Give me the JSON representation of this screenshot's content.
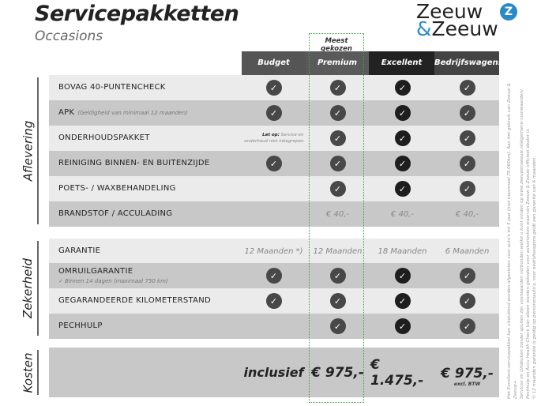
{
  "title": "Servicepakketten",
  "subtitle": "Occasions",
  "logo": {
    "line1": "Zeeuw",
    "line2_amp": "&",
    "line2": "Zeeuw",
    "mark": "Z"
  },
  "badge": "Meest gekozen",
  "columns": [
    "Budget",
    "Premium",
    "Excellent",
    "Bedrijfswagens"
  ],
  "colors": {
    "highlight": "#3aa53a",
    "logo_blue": "#2a8ac8"
  },
  "sections": [
    {
      "label": "Aflevering",
      "rows": [
        {
          "label": "BOVAG 40-PUNTENCHECK",
          "cells": [
            "check",
            "check",
            "check",
            "check"
          ]
        },
        {
          "label": "APK",
          "note": "(Geldigheid van minimaal 12 maanden)",
          "cells": [
            "check",
            "check",
            "check",
            "check"
          ]
        },
        {
          "label": "ONDERHOUDSPAKKET",
          "cells": [
            "letop",
            "check",
            "check",
            "check"
          ]
        },
        {
          "label": "REINIGING BINNEN- EN BUITENZIJDE",
          "cells": [
            "check",
            "check",
            "check",
            "check"
          ]
        },
        {
          "label": "POETS- / WAXBEHANDELING",
          "cells": [
            "",
            "check",
            "check",
            "check"
          ]
        },
        {
          "label": "BRANDSTOF / ACCULADING",
          "cells": [
            "",
            "€ 40,-",
            "€ 40,-",
            "€ 40,-"
          ]
        }
      ]
    },
    {
      "label": "Zekerheid",
      "rows": [
        {
          "label": "GARANTIE",
          "cells": [
            "12 Maanden *)",
            "12 Maanden",
            "18 Maanden",
            "6 Maanden"
          ]
        },
        {
          "label": "OMRUILGARANTIE",
          "sub": "✓   Binnen 14 dagen (maximaal 750 km)",
          "cells": [
            "check",
            "check",
            "check",
            "check"
          ]
        },
        {
          "label": "GEGARANDEERDE KILOMETERSTAND",
          "cells": [
            "check",
            "check",
            "check",
            "check"
          ]
        },
        {
          "label": "PECHHULP",
          "cells": [
            "",
            "check",
            "check",
            "check"
          ]
        }
      ]
    },
    {
      "label": "Kosten",
      "prices": [
        "inclusief",
        "€ 975,-",
        "€ 1.475,-",
        "€ 975,-"
      ],
      "excl": "excl. BTW"
    }
  ],
  "letop": {
    "bold": "Let op:",
    "text": "Service en onderhoud niet inbegrepen"
  },
  "footnote": [
    "Het Excellent-servicepakket kan uitsluitend worden afgesloten voor auto's tot 5 jaar (met maximaal 75.000km). Aan het gebruik van Zeeuw & Zeeuw+",
    "Services en Uitdeuken zonder spuiten zijn voorwaarden verbonden welke u kunt vinden op www.zeeuwenzeeuw.nl/algemene-voorwaarden/.",
    "Pechhulp en Accu Health Check kan alleen worden geboden voor automerken waarvan Zeeuw & Zeeuw officieel dealer is.",
    "*) 12 maanden garantie is geldig op personenauto's, voor bedrijfswagens geldt een garantie van 6 maanden."
  ]
}
